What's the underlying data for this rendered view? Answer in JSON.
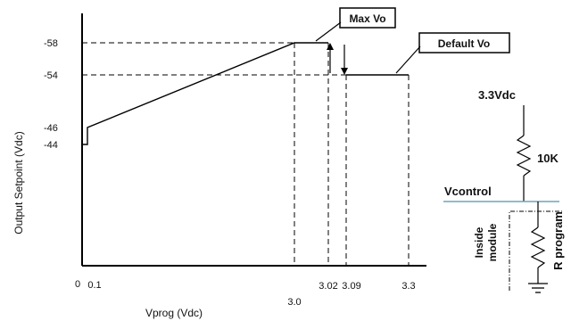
{
  "chart_data": {
    "type": "line",
    "xlabel": "Vprog (Vdc)",
    "ylabel": "Output Setpoint (Vdc)",
    "x_ticks": [
      "0",
      "0.1",
      "3.0",
      "3.02",
      "3.09",
      "3.3"
    ],
    "y_ticks": [
      "-58",
      "-54",
      "-46",
      "-44"
    ],
    "series": [
      {
        "x": [
          "0.1",
          "0.1",
          "3.0",
          "3.02",
          "3.02",
          "3.3"
        ],
        "y": [
          -44,
          -46,
          -58,
          -58,
          -54,
          -54
        ]
      }
    ],
    "callouts": {
      "max": "Max Vo",
      "default": "Default Vo"
    }
  },
  "circuit": {
    "supply": "3.3Vdc",
    "resistor": "10K",
    "node": "Vcontrol",
    "inside": [
      "Inside",
      "module"
    ],
    "program": "R program"
  }
}
